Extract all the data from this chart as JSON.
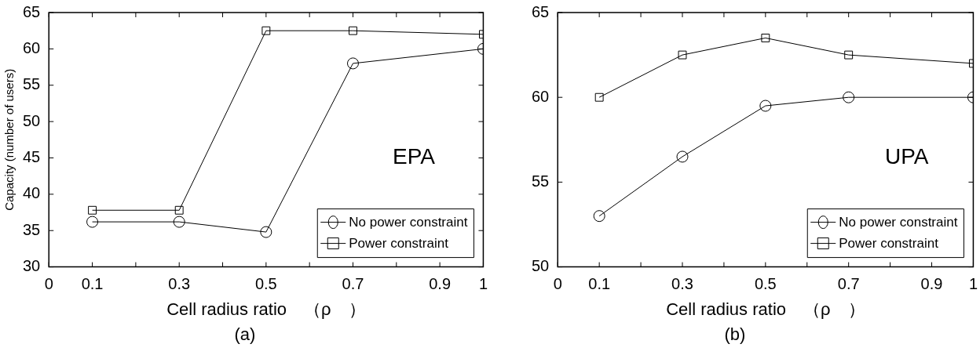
{
  "chart_data": [
    {
      "type": "line",
      "xlabel": "Cell radius ratio　（ρ　）",
      "ylabel": "Capacity (number of users)",
      "x": [
        0.1,
        0.3,
        0.5,
        0.7,
        1
      ],
      "xlim": [
        0,
        1
      ],
      "xticks": [
        0,
        0.1,
        {
          "value": 0.2,
          "label": null
        },
        0.3,
        {
          "value": 0.4,
          "label": null
        },
        0.5,
        {
          "value": 0.6,
          "label": null
        },
        0.7,
        {
          "value": 0.8,
          "label": null
        },
        0.9,
        1
      ],
      "ylim": [
        30,
        65
      ],
      "yticks": [
        30,
        35,
        40,
        45,
        50,
        55,
        60,
        65
      ],
      "grid": false,
      "legend": "bottom right",
      "line_style": "solid",
      "annotations": [
        "EPA",
        "(a)"
      ],
      "series": [
        {
          "name": "No power constraint",
          "color": "#000000",
          "marker": "circle",
          "values": [
            36.2,
            36.2,
            34.8,
            58,
            60
          ]
        },
        {
          "name": "Power constraint",
          "color": "#000000",
          "marker": "square",
          "values": [
            37.8,
            37.8,
            62.5,
            62.5,
            62
          ]
        }
      ]
    },
    {
      "type": "line",
      "xlabel": "Cell radius ratio　（ρ　）",
      "x": [
        0.1,
        0.3,
        0.5,
        0.7,
        1
      ],
      "xlim": [
        0,
        1
      ],
      "xticks": [
        0,
        0.1,
        {
          "value": 0.2,
          "label": null
        },
        0.3,
        {
          "value": 0.4,
          "label": null
        },
        0.5,
        {
          "value": 0.6,
          "label": null
        },
        0.7,
        {
          "value": 0.8,
          "label": null
        },
        0.9,
        1
      ],
      "ylim": [
        50,
        65
      ],
      "yticks": [
        50,
        55,
        60,
        65
      ],
      "grid": false,
      "legend": "bottom right",
      "line_style": "solid",
      "annotations": [
        "UPA",
        "(b)"
      ],
      "series": [
        {
          "name": "No power constraint",
          "color": "#000000",
          "marker": "circle",
          "values": [
            53,
            56.5,
            59.5,
            60,
            60
          ]
        },
        {
          "name": "Power constraint",
          "color": "#000000",
          "marker": "square",
          "values": [
            60,
            62.5,
            63.5,
            62.5,
            62
          ]
        }
      ]
    }
  ]
}
